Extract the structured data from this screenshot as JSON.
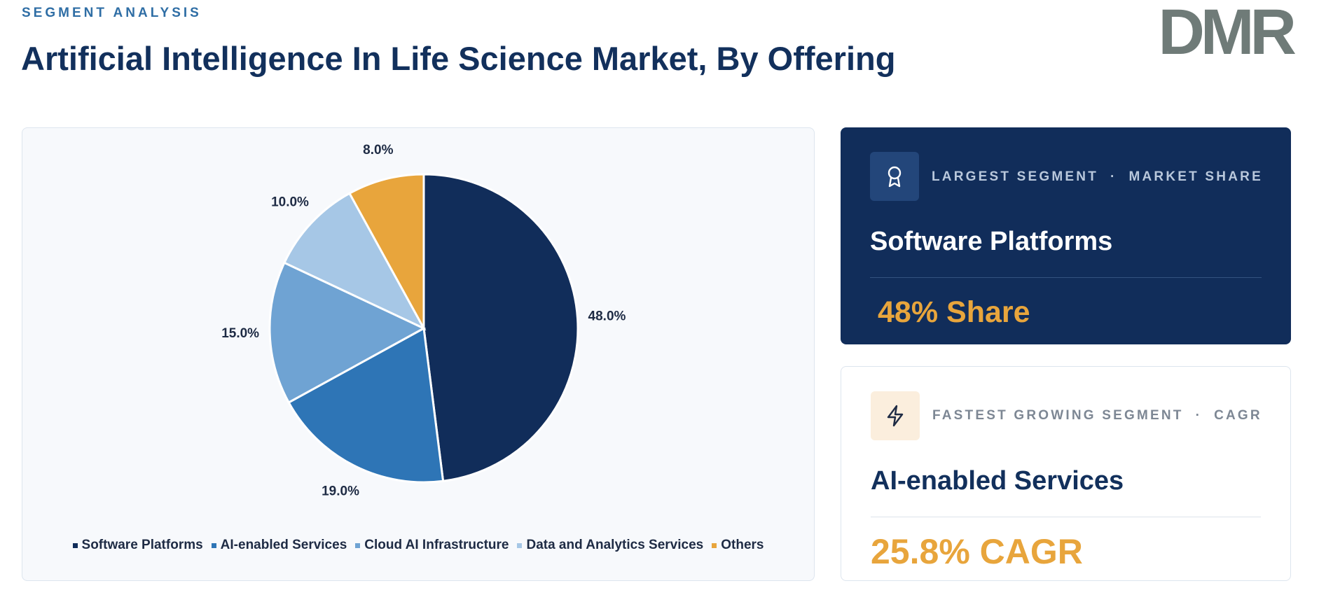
{
  "header": {
    "eyebrow": "SEGMENT ANALYSIS",
    "title": "Artificial Intelligence In Life Science Market, By Offering",
    "logo": "DMR"
  },
  "chart_data": {
    "type": "pie",
    "categories": [
      "Software Platforms",
      "AI-enabled Services",
      "Cloud AI Infrastructure",
      "Data and Analytics Services",
      "Others"
    ],
    "values": [
      48,
      19,
      15,
      10,
      8
    ],
    "value_labels": [
      "48.0%",
      "19.0%",
      "15.0%",
      "10.0%",
      "8.0%"
    ],
    "colors": [
      "#112d5a",
      "#2e75b6",
      "#6fa3d3",
      "#a6c7e6",
      "#e8a53c"
    ]
  },
  "cards": [
    {
      "kicker": "LARGEST SEGMENT",
      "separator": "·",
      "metric": "MARKET SHARE",
      "segment": "Software Platforms",
      "value": "48% Share"
    },
    {
      "kicker": "FASTEST GROWING SEGMENT",
      "separator": "·",
      "metric": "CAGR",
      "segment": "AI-enabled Services",
      "value": "25.8% CAGR"
    }
  ]
}
